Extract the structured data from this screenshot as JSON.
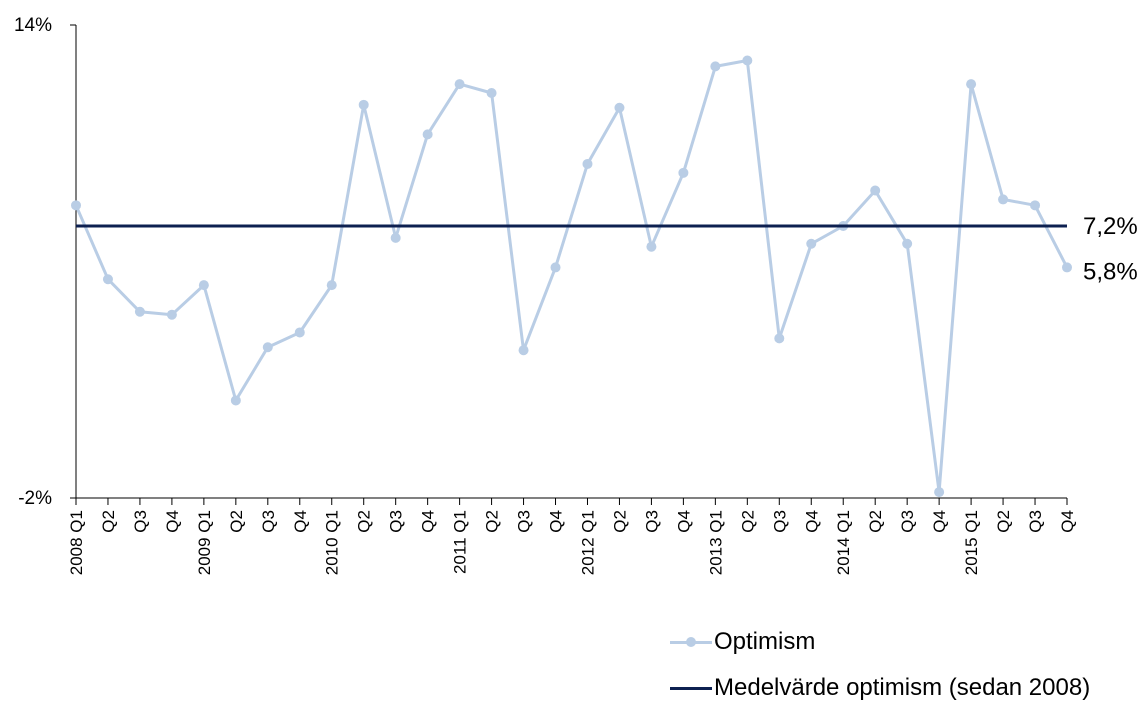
{
  "chart_data": {
    "type": "line",
    "categories": [
      "2008 Q1",
      "Q2",
      "Q3",
      "Q4",
      "2009 Q1",
      "Q2",
      "Q3",
      "Q4",
      "2010 Q1",
      "Q2",
      "Q3",
      "Q4",
      "2011 Q1",
      "Q2",
      "Q3",
      "Q4",
      "2012 Q1",
      "Q2",
      "Q3",
      "Q4",
      "2013 Q1",
      "Q2",
      "Q3",
      "Q4",
      "2014 Q1",
      "Q2",
      "Q3",
      "Q4",
      "2015 Q1",
      "Q2",
      "Q3",
      "Q4"
    ],
    "series": [
      {
        "name": "Optimism",
        "color": "#b9cde5",
        "marker": "circle",
        "values": [
          7.9,
          5.4,
          4.3,
          4.2,
          5.2,
          1.3,
          3.1,
          3.6,
          5.2,
          11.3,
          6.8,
          10.3,
          12.0,
          11.7,
          3.0,
          5.8,
          9.3,
          11.2,
          6.5,
          9.0,
          12.6,
          12.8,
          3.4,
          6.6,
          7.2,
          8.4,
          6.6,
          -1.8,
          12.0,
          8.1,
          7.9,
          5.8
        ]
      },
      {
        "name": "Medelvärde optimism (sedan 2008)",
        "color": "#0d2050",
        "marker": "none",
        "values": [
          7.2,
          7.2,
          7.2,
          7.2,
          7.2,
          7.2,
          7.2,
          7.2,
          7.2,
          7.2,
          7.2,
          7.2,
          7.2,
          7.2,
          7.2,
          7.2,
          7.2,
          7.2,
          7.2,
          7.2,
          7.2,
          7.2,
          7.2,
          7.2,
          7.2,
          7.2,
          7.2,
          7.2,
          7.2,
          7.2,
          7.2,
          7.2
        ]
      }
    ],
    "ylim": [
      -2,
      14
    ],
    "ytick_labels": [
      "14%",
      "-2%"
    ],
    "end_labels": [
      "7,2%",
      "5,8%"
    ],
    "title": "",
    "xlabel": "",
    "ylabel": "",
    "grid": false,
    "legend_position": "bottom-right"
  }
}
